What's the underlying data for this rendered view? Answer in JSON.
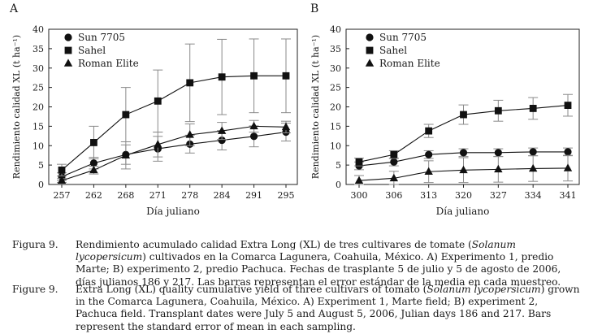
{
  "chart_data": [
    {
      "type": "line",
      "panel_label": "A",
      "ylabel": "Rendimiento calidad XL (t ha⁻¹)",
      "xlabel": "Día juliano",
      "categories": [
        "257",
        "262",
        "268",
        "271",
        "278",
        "284",
        "291",
        "295"
      ],
      "ylim": [
        0,
        40
      ],
      "yticks": [
        0,
        5,
        10,
        15,
        20,
        25,
        30,
        35,
        40
      ],
      "legend_position": "top-left",
      "series": [
        {
          "name": "Sun 7705",
          "marker": "circle",
          "values": [
            2.0,
            5.5,
            7.7,
            9.2,
            10.4,
            11.4,
            12.4,
            13.5
          ],
          "errors": [
            1.0,
            1.5,
            2.5,
            3.2,
            2.3,
            2.5,
            2.7,
            2.3
          ]
        },
        {
          "name": "Sahel",
          "marker": "square",
          "values": [
            3.7,
            10.8,
            18.0,
            21.5,
            26.2,
            27.7,
            28.0,
            28.0
          ],
          "errors": [
            1.5,
            4.2,
            7.0,
            8.0,
            10.0,
            9.7,
            9.5,
            9.5
          ]
        },
        {
          "name": "Roman Elite",
          "marker": "triangle",
          "values": [
            1.0,
            3.7,
            7.5,
            10.3,
            12.8,
            13.8,
            15.0,
            14.8
          ],
          "errors": [
            0.5,
            1.0,
            3.5,
            3.2,
            2.8,
            2.2,
            1.5,
            1.5
          ]
        }
      ]
    },
    {
      "type": "line",
      "panel_label": "B",
      "ylabel": "Rendimiento calidad XL (t ha⁻¹)",
      "xlabel": "Día juliano",
      "categories": [
        "300",
        "306",
        "313",
        "320",
        "327",
        "334",
        "341"
      ],
      "ylim": [
        0,
        40
      ],
      "yticks": [
        0,
        5,
        10,
        15,
        20,
        25,
        30,
        35,
        40
      ],
      "legend_position": "top-left",
      "series": [
        {
          "name": "Sun 7705",
          "marker": "circle",
          "values": [
            4.8,
            5.8,
            7.7,
            8.2,
            8.2,
            8.4,
            8.4
          ],
          "errors": [
            1.0,
            1.0,
            1.0,
            1.0,
            1.0,
            1.0,
            1.0
          ]
        },
        {
          "name": "Sahel",
          "marker": "square",
          "values": [
            5.8,
            7.7,
            13.8,
            18.0,
            19.0,
            19.6,
            20.4
          ],
          "errors": [
            1.0,
            1.0,
            1.7,
            2.5,
            2.7,
            2.8,
            2.8
          ]
        },
        {
          "name": "Roman Elite",
          "marker": "triangle",
          "values": [
            1.0,
            1.6,
            3.3,
            3.7,
            3.9,
            4.1,
            4.2
          ],
          "errors": [
            1.3,
            1.8,
            2.8,
            3.2,
            3.3,
            3.3,
            3.3
          ]
        }
      ]
    }
  ],
  "caption": {
    "es_label": "Figura 9.",
    "es_text_1": "Rendimiento acumulado calidad Extra Long (XL) de tres cultivares de tomate (",
    "es_species": "Solanum lycopersicum",
    "es_text_2": ") cultivados en la Comarca Lagunera, Coahuila, México. A) Experimento 1, predio Marte; B) experimento 2, predio Pachuca. Fechas de trasplante 5 de julio y 5 de agosto de 2006, días julianos 186 y 217. Las barras representan el error estándar de la media en cada muestreo.",
    "en_label": "Figure 9.",
    "en_text_1": "Extra Long (XL) quality cumulative yield of three cultivars of tomato (",
    "en_species": "Solanum lycopersicum",
    "en_text_2": ") grown in the Comarca Lagunera, Coahuila, México. A) Experiment 1,  Marte field; B) experiment 2, Pachuca field. Transplant dates were July 5 and August 5, 2006, Julian days 186 and 217. Bars represent the standard error of mean in each sampling."
  }
}
